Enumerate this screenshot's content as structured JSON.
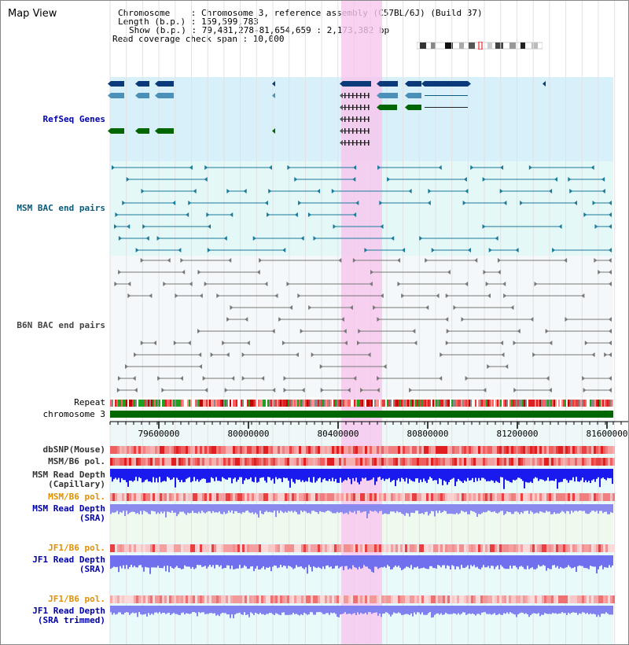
{
  "title": "Map View",
  "info": {
    "chromosome": "Chromosome    : Chromosome 3, reference assembly (C57BL/6J) (Build 37)",
    "length": "Length (b.p.) : 159,599,783",
    "show": "Show (b.p.) : 79,481,278-81,654,659 : 2,173,382 bp",
    "coverage": "Read coverage check span : 10,000"
  },
  "tracks": {
    "refseq": "RefSeq Genes",
    "msm_bac": "MSM BAC end pairs",
    "b6n_bac": "B6N BAC end pairs",
    "repeat": "Repeat",
    "chromosome": "chromosome 3",
    "dbsnp": "dbSNP(Mouse)",
    "msm_b6_pol_1": "MSM/B6 pol.",
    "msm_read_depth_cap": [
      "MSM Read Depth",
      "(Capillary)"
    ],
    "msm_b6_pol_2": "MSM/B6 pol.",
    "msm_read_depth_sra": [
      "MSM Read Depth",
      "(SRA)"
    ],
    "jf1_b6_pol_1": "JF1/B6 pol.",
    "jf1_read_depth_sra": [
      "JF1 Read Depth",
      "(SRA)"
    ],
    "jf1_b6_pol_2": "JF1/B6 pol.",
    "jf1_read_depth_trim": [
      "JF1 Read Depth",
      "(SRA trimmed)"
    ]
  },
  "axis": {
    "ticks": [
      "79600000",
      "80000000",
      "80400000",
      "80800000",
      "81200000",
      "81600000"
    ]
  },
  "colors": {
    "refseq_bg": "#d8f0fa",
    "msm_bac_bg": "#e4f8f8",
    "b6n_bac_bg": "#f4f8fa",
    "highlight": "#f7c6ee",
    "refseq_label": "#0000aa",
    "msm_bac_label": "#0a5a7a",
    "b6n_bac_label": "#444444",
    "orange_label": "#e09000",
    "blue_label": "#0000aa",
    "chromosome_bar": "#006600"
  }
}
